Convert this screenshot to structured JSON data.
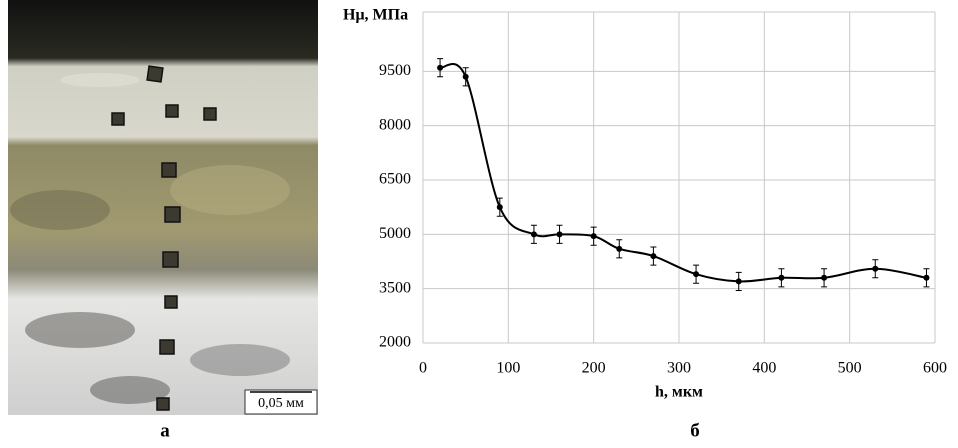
{
  "micrograph": {
    "scale_bar": "0,05 мм",
    "label": "а"
  },
  "chart_data": {
    "type": "line",
    "label": "б",
    "y_label": "Hμ, МПа",
    "x_label": "h, мкм",
    "x": [
      20,
      50,
      90,
      130,
      160,
      200,
      230,
      270,
      320,
      370,
      420,
      470,
      530,
      590
    ],
    "values": [
      9600,
      9350,
      5750,
      5000,
      5000,
      4950,
      4600,
      4400,
      3900,
      3700,
      3800,
      3800,
      4050,
      3800
    ],
    "errors": [
      250,
      250,
      250,
      250,
      250,
      250,
      250,
      250,
      250,
      250,
      250,
      250,
      250,
      250
    ],
    "color": "#000000",
    "xlim": [
      0,
      600
    ],
    "xticks": [
      0,
      100,
      200,
      300,
      400,
      500,
      600
    ],
    "ylim": [
      2000,
      11000
    ],
    "yticks": [
      2000,
      3500,
      5000,
      6500,
      8000,
      9500
    ],
    "grid": true
  }
}
